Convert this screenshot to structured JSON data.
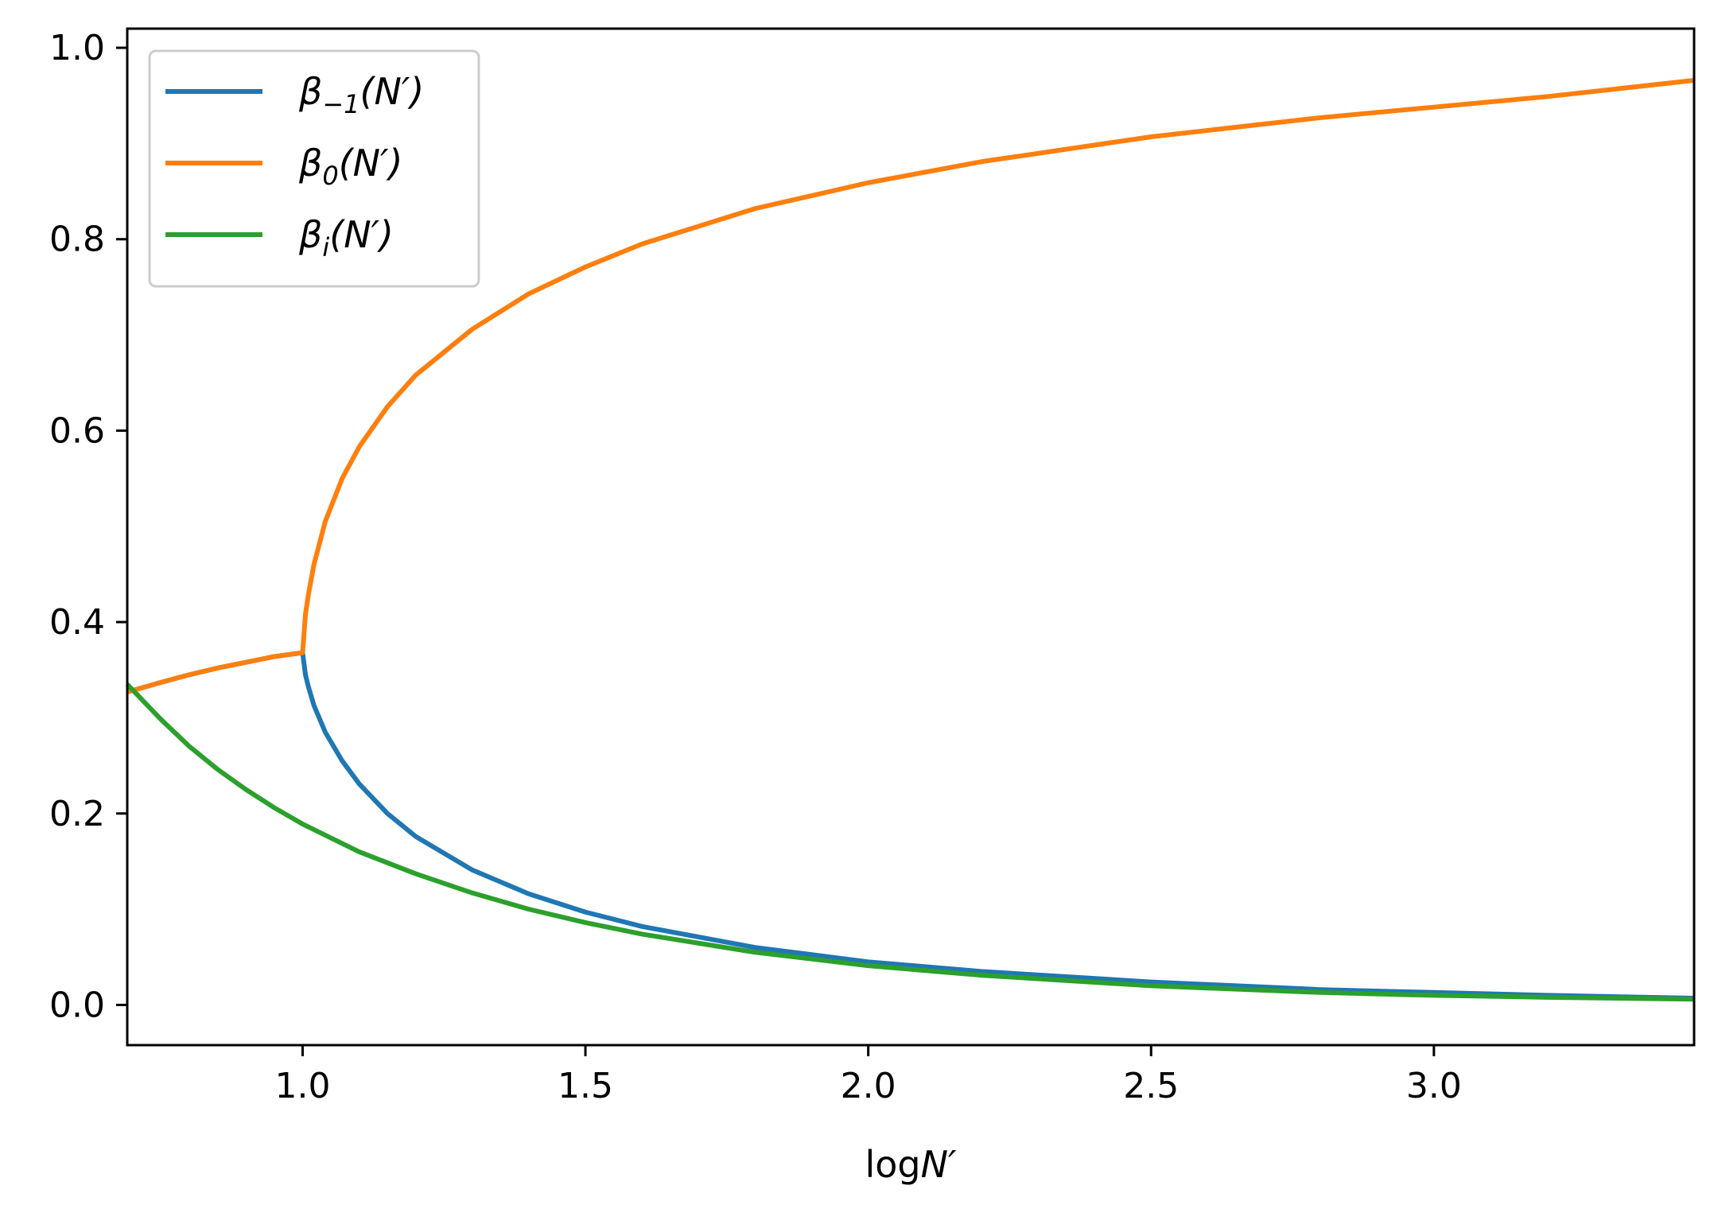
{
  "chart_data": {
    "type": "line",
    "title": "",
    "xlabel": "log",
    "xlabel_var": "N′",
    "ylabel": "",
    "xlim": [
      0.69,
      3.46
    ],
    "ylim": [
      -0.042,
      1.02
    ],
    "x_ticks": [
      1.0,
      1.5,
      2.0,
      2.5,
      3.0
    ],
    "x_tick_labels": [
      "1.0",
      "1.5",
      "2.0",
      "2.5",
      "3.0"
    ],
    "y_ticks": [
      0.0,
      0.2,
      0.4,
      0.6,
      0.8,
      1.0
    ],
    "y_tick_labels": [
      "0.0",
      "0.2",
      "0.4",
      "0.6",
      "0.8",
      "1.0"
    ],
    "grid": false,
    "legend_position": "top-left",
    "series": [
      {
        "name": "β−1(N′)",
        "legend": {
          "base": "β",
          "sub": "−1",
          "arg": "(N′)"
        },
        "color": "#1f77b4",
        "x": [
          0.69,
          0.75,
          0.8,
          0.85,
          0.9,
          0.95,
          1.0,
          1.005,
          1.01,
          1.02,
          1.04,
          1.07,
          1.1,
          1.15,
          1.2,
          1.3,
          1.4,
          1.5,
          1.6,
          1.8,
          2.0,
          2.2,
          2.5,
          2.8,
          3.0,
          3.2,
          3.46
        ],
        "y": [
          0.327,
          0.337,
          0.345,
          0.352,
          0.358,
          0.364,
          0.368,
          0.345,
          0.333,
          0.313,
          0.285,
          0.255,
          0.231,
          0.2,
          0.176,
          0.141,
          0.116,
          0.097,
          0.082,
          0.06,
          0.045,
          0.035,
          0.024,
          0.016,
          0.013,
          0.01,
          0.007
        ]
      },
      {
        "name": "β0(N′)",
        "legend": {
          "base": "β",
          "sub": "0",
          "arg": "(N′)"
        },
        "color": "#ff7f0e",
        "x": [
          0.69,
          0.75,
          0.8,
          0.85,
          0.9,
          0.95,
          1.0,
          1.005,
          1.01,
          1.02,
          1.04,
          1.07,
          1.1,
          1.15,
          1.2,
          1.3,
          1.4,
          1.5,
          1.6,
          1.8,
          2.0,
          2.2,
          2.5,
          2.8,
          3.0,
          3.2,
          3.46
        ],
        "y": [
          0.327,
          0.337,
          0.345,
          0.352,
          0.358,
          0.364,
          0.368,
          0.408,
          0.428,
          0.46,
          0.505,
          0.55,
          0.583,
          0.625,
          0.658,
          0.706,
          0.743,
          0.771,
          0.795,
          0.832,
          0.859,
          0.881,
          0.907,
          0.927,
          0.938,
          0.949,
          0.966
        ]
      },
      {
        "name": "βi(N′)",
        "legend": {
          "base": "β",
          "sub": "i",
          "arg": "(N′)"
        },
        "color": "#2ca02c",
        "x": [
          0.69,
          0.75,
          0.8,
          0.85,
          0.9,
          0.95,
          1.0,
          1.1,
          1.2,
          1.3,
          1.4,
          1.5,
          1.6,
          1.8,
          2.0,
          2.2,
          2.5,
          2.8,
          3.0,
          3.2,
          3.46
        ],
        "y": [
          0.335,
          0.298,
          0.27,
          0.246,
          0.225,
          0.206,
          0.189,
          0.16,
          0.137,
          0.117,
          0.1,
          0.086,
          0.074,
          0.055,
          0.041,
          0.031,
          0.02,
          0.013,
          0.01,
          0.008,
          0.006
        ]
      }
    ]
  }
}
